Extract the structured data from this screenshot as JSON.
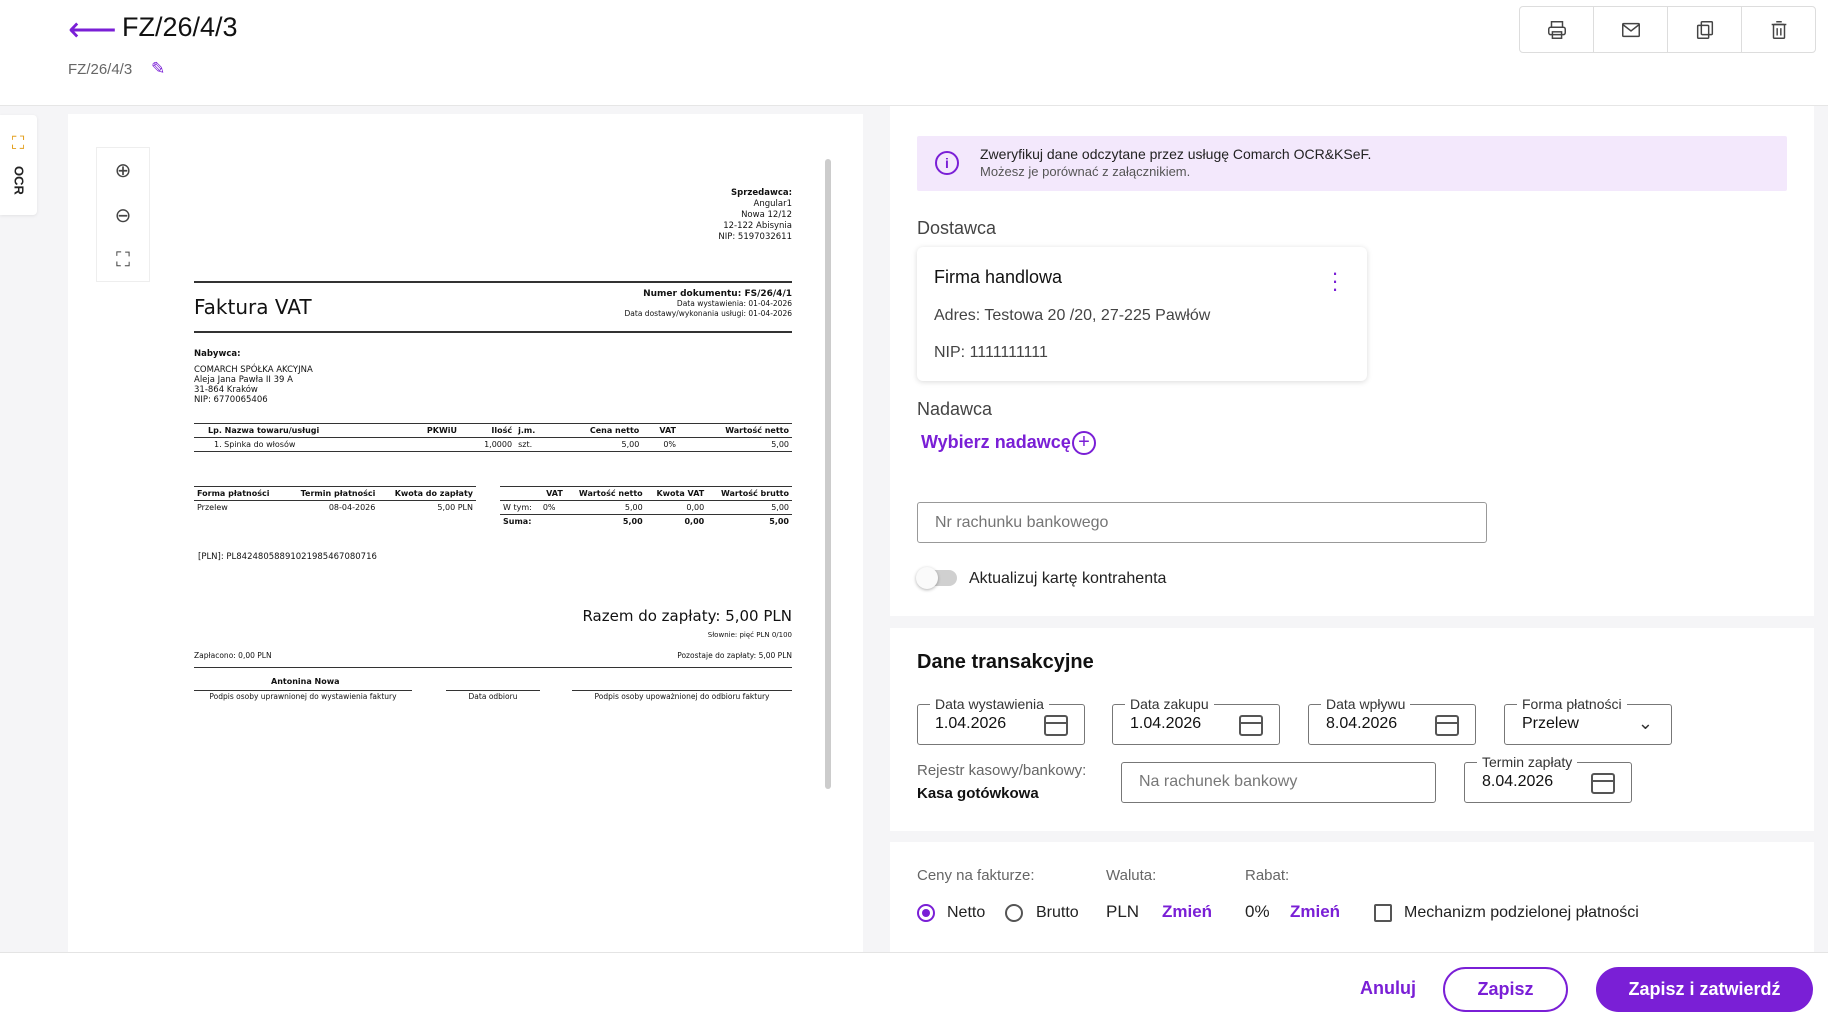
{
  "header": {
    "title": "FZ/26/4/3",
    "subtitle": "FZ/26/4/3"
  },
  "toolbar": {
    "icons": [
      "printer-icon",
      "mail-icon",
      "copy-icon",
      "trash-icon"
    ]
  },
  "ocr_tab": {
    "label": "OCR"
  },
  "invoice_preview": {
    "seller_heading": "Sprzedawca:",
    "seller_lines": [
      "Angular1",
      "Nowa 12/12",
      "12-122 Abisynia",
      "NIP: 5197032611"
    ],
    "doc_title": "Faktura VAT",
    "doc_number": "Numer dokumentu: FS/26/4/1",
    "issue_date": "Data wystawienia: 01-04-2026",
    "delivery_date": "Data dostawy/wykonania usługi: 01-04-2026",
    "buyer_heading": "Nabywca:",
    "buyer_lines": [
      "COMARCH SPÓŁKA AKCYJNA",
      "Aleja Jana Pawła II 39 A",
      "31-864 Kraków",
      "NIP: 6770065406"
    ],
    "items_headers": [
      "Lp. Nazwa towaru/usługi",
      "PKWiU",
      "Ilość",
      "j.m.",
      "Cena netto",
      "VAT",
      "Wartość netto"
    ],
    "items": [
      [
        "1. Spinka do włosów",
        "",
        "1,0000",
        "szt.",
        "5,00",
        "0%",
        "5,00"
      ]
    ],
    "pay_headers": [
      "Forma płatności",
      "Termin płatności",
      "Kwota do zapłaty"
    ],
    "pay_row": [
      "Przelew",
      "08-04-2026",
      "5,00 PLN"
    ],
    "vat_headers": [
      "",
      "VAT",
      "Wartość netto",
      "Kwota VAT",
      "Wartość brutto"
    ],
    "vat_rows": [
      [
        "W tym:",
        "0%",
        "5,00",
        "0,00",
        "5,00"
      ],
      [
        "Suma:",
        "",
        "5,00",
        "0,00",
        "5,00"
      ]
    ],
    "account": "[PLN]: PL84248058891021985467080716",
    "total": "Razem do zapłaty: 5,00 PLN",
    "total_words": "Słownie: pięć PLN 0/100",
    "paid": "Zapłacono: 0,00 PLN",
    "remaining": "Pozostaje do zapłaty: 5,00 PLN",
    "signer": "Antonina Nowa",
    "sig1": "Podpis osoby uprawnionej do wystawienia faktury",
    "sig2": "Data odbioru",
    "sig3": "Podpis osoby upoważnionej do odbioru faktury"
  },
  "info": {
    "line1": "Zweryfikuj dane odczytane przez usługę Comarch OCR&KSeF.",
    "line2": "Możesz je porównać z załącznikiem."
  },
  "supplier": {
    "label": "Dostawca",
    "name": "Firma handlowa",
    "address": "Adres: Testowa 20 /20, 27-225 Pawłów",
    "nip": "NIP: 1111111111"
  },
  "sender": {
    "label": "Nadawca",
    "pick": "Wybierz nadawcę"
  },
  "bank": {
    "placeholder": "Nr rachunku bankowego"
  },
  "toggle": {
    "label": "Aktualizuj kartę kontrahenta"
  },
  "transaction": {
    "heading": "Dane transakcyjne",
    "issue_label": "Data wystawienia",
    "issue_value": "1.04.2026",
    "purchase_label": "Data zakupu",
    "purchase_value": "1.04.2026",
    "receipt_label": "Data wpływu",
    "receipt_value": "8.04.2026",
    "payment_label": "Forma płatności",
    "payment_value": "Przelew",
    "register_label": "Rejestr kasowy/bankowy:",
    "register_value": "Kasa gotówkowa",
    "account_placeholder": "Na rachunek bankowy",
    "due_label": "Termin zapłaty",
    "due_value": "8.04.2026"
  },
  "pricing": {
    "prices_label": "Ceny na fakturze:",
    "netto": "Netto",
    "brutto": "Brutto",
    "currency_label": "Waluta:",
    "currency_value": "PLN",
    "change": "Zmień",
    "discount_label": "Rabat:",
    "discount_value": "0%",
    "split_payment": "Mechanizm podzielonej płatności"
  },
  "footer": {
    "cancel": "Anuluj",
    "save": "Zapisz",
    "save_confirm": "Zapisz i zatwierdź"
  },
  "colors": {
    "accent": "#7a1fd6",
    "info_bg": "#f3e8fc"
  }
}
